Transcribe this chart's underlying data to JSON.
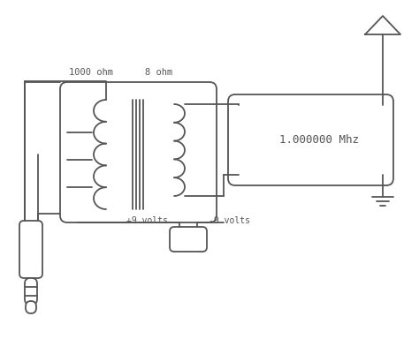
{
  "bg_color": "#ffffff",
  "line_color": "#555555",
  "text_1000ohm": "1000 ohm",
  "text_8ohm": "8 ohm",
  "text_freq": "1.000000 Mhz",
  "text_plus9": "+9 volts",
  "text_minus9": "-9 volts",
  "lw": 1.3
}
